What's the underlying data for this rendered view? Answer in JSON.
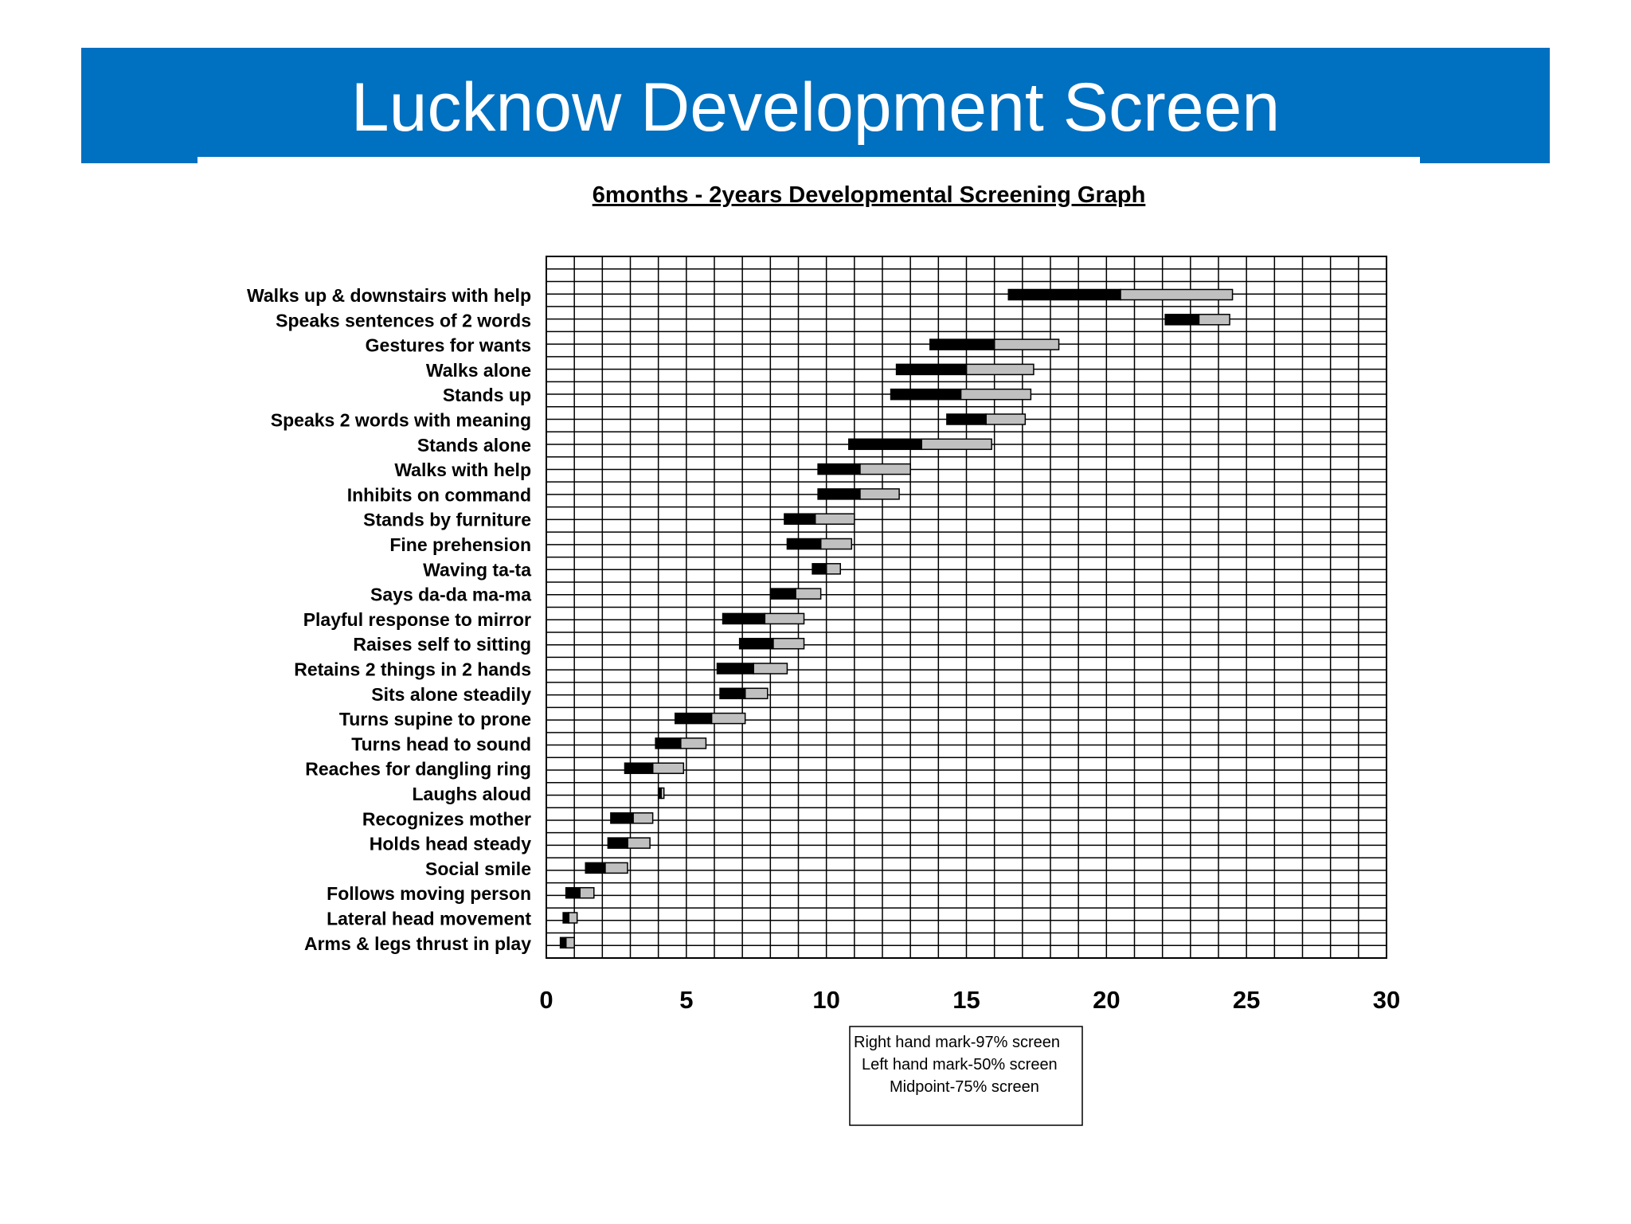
{
  "header": {
    "title": "Lucknow Development Screen",
    "band_color": "#0070c0",
    "title_color": "#ffffff"
  },
  "chart_data": {
    "type": "bar",
    "subtype": "floating-range-horizontal",
    "title": "6months - 2years Developmental Screening Graph",
    "xlabel": "",
    "ylabel": "",
    "xlim": [
      0,
      30
    ],
    "x_ticks": [
      "0",
      "5",
      "10",
      "15",
      "20",
      "25",
      "30"
    ],
    "grid": true,
    "legend_position": "bottom-center",
    "legend": [
      "Right hand mark-97% screen",
      "Left hand mark-50% screen",
      "Midpoint-75% screen"
    ],
    "series_colors": {
      "50_to_75_percent": "#000000",
      "75_to_97_percent": "#c0c0c0"
    },
    "milestones": [
      {
        "label": "Walks up & downstairs with help",
        "p50": 16.5,
        "p75": 20.5,
        "p97": 24.5
      },
      {
        "label": "Speaks sentences of 2 words",
        "p50": 22.1,
        "p75": 23.3,
        "p97": 24.4
      },
      {
        "label": "Gestures for wants",
        "p50": 13.7,
        "p75": 16.0,
        "p97": 18.3
      },
      {
        "label": "Walks alone",
        "p50": 12.5,
        "p75": 15.0,
        "p97": 17.4
      },
      {
        "label": "Stands up",
        "p50": 12.3,
        "p75": 14.8,
        "p97": 17.3
      },
      {
        "label": "Speaks 2 words with meaning",
        "p50": 14.3,
        "p75": 15.7,
        "p97": 17.1
      },
      {
        "label": "Stands alone",
        "p50": 10.8,
        "p75": 13.4,
        "p97": 15.9
      },
      {
        "label": "Walks with help",
        "p50": 9.7,
        "p75": 11.2,
        "p97": 13.0
      },
      {
        "label": "Inhibits on command",
        "p50": 9.7,
        "p75": 11.2,
        "p97": 12.6
      },
      {
        "label": "Stands by furniture",
        "p50": 8.5,
        "p75": 9.6,
        "p97": 11.0
      },
      {
        "label": "Fine prehension",
        "p50": 8.6,
        "p75": 9.8,
        "p97": 10.9
      },
      {
        "label": "Waving ta-ta",
        "p50": 9.5,
        "p75": 10.0,
        "p97": 10.5
      },
      {
        "label": "Says da-da ma-ma",
        "p50": 8.0,
        "p75": 8.9,
        "p97": 9.8
      },
      {
        "label": "Playful response to mirror",
        "p50": 6.3,
        "p75": 7.8,
        "p97": 9.2
      },
      {
        "label": "Raises self to sitting",
        "p50": 6.9,
        "p75": 8.1,
        "p97": 9.2
      },
      {
        "label": "Retains 2 things in 2 hands",
        "p50": 6.1,
        "p75": 7.4,
        "p97": 8.6
      },
      {
        "label": "Sits alone steadily",
        "p50": 6.2,
        "p75": 7.1,
        "p97": 7.9
      },
      {
        "label": "Turns supine to prone ",
        "p50": 4.6,
        "p75": 5.9,
        "p97": 7.1
      },
      {
        "label": "Turns head to sound",
        "p50": 3.9,
        "p75": 4.8,
        "p97": 5.7
      },
      {
        "label": "Reaches for dangling ring",
        "p50": 2.8,
        "p75": 3.8,
        "p97": 4.9
      },
      {
        "label": "Laughs aloud",
        "p50": 4.0,
        "p75": 4.1,
        "p97": 4.2
      },
      {
        "label": "Recognizes mother",
        "p50": 2.3,
        "p75": 3.1,
        "p97": 3.8
      },
      {
        "label": "Holds head steady",
        "p50": 2.2,
        "p75": 2.9,
        "p97": 3.7
      },
      {
        "label": "Social smile ",
        "p50": 1.4,
        "p75": 2.1,
        "p97": 2.9
      },
      {
        "label": "Follows moving person",
        "p50": 0.7,
        "p75": 1.2,
        "p97": 1.7
      },
      {
        "label": "Lateral head movement",
        "p50": 0.6,
        "p75": 0.8,
        "p97": 1.1
      },
      {
        "label": "Arms & legs thrust in play",
        "p50": 0.5,
        "p75": 0.7,
        "p97": 1.0
      }
    ]
  }
}
